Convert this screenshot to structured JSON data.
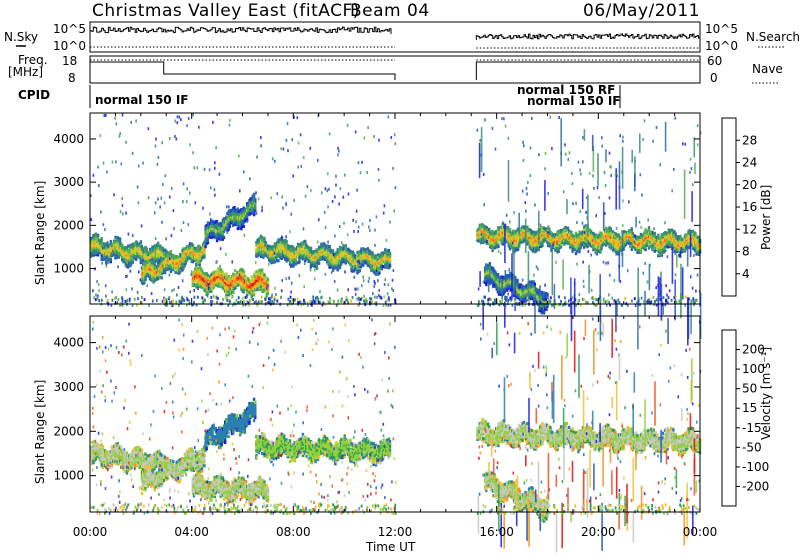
{
  "header": {
    "station": "Christmas Valley East (fitACF)",
    "beam": "Beam 04",
    "date": "06/May/2011"
  },
  "status_labels": {
    "nsky": "N.Sky",
    "nsearch": "N.Search",
    "freq_line1": "Freq.",
    "freq_line2": "[MHz]",
    "nave": "Nave",
    "cpid": "CPID"
  },
  "status_ticks": {
    "nsky_left": [
      "10^5",
      "10^0"
    ],
    "nsky_right": [
      "10^5",
      "10^0"
    ],
    "freq_left": [
      "18",
      "8"
    ],
    "nave_right": [
      "60",
      "0"
    ]
  },
  "cpid_labels": [
    "normal 150 IF",
    "normal 150 RF",
    "normal 150 IF"
  ],
  "colors": {
    "power_scale": [
      "#1a1ae6",
      "#2050c0",
      "#2f6f9f",
      "#3a8f6f",
      "#55b050",
      "#a8d040",
      "#f0c020",
      "#f09020",
      "#f05020",
      "#e01010"
    ],
    "velocity_scale": [
      "#1a1ae6",
      "#2050c0",
      "#2a7fb0",
      "#2f9f4f",
      "#8fd040",
      "#c8c8c0",
      "#f0c030",
      "#f09020",
      "#f05020",
      "#e01010"
    ]
  },
  "chart_data": [
    {
      "type": "heatmap",
      "name": "power",
      "ylabel": "Slant Range [km]",
      "xlabel": "Time UT",
      "x_ticks": [
        "00:00",
        "04:00",
        "08:00",
        "12:00",
        "16:00",
        "20:00",
        "00:00"
      ],
      "y_ticks": [
        "1000",
        "2000",
        "3000",
        "4000"
      ],
      "xlim_hours": [
        0,
        24
      ],
      "ylim_km": [
        180,
        4600
      ],
      "data_gap_hours": [
        12,
        15.2
      ],
      "colorbar": {
        "label": "Power [dB]",
        "ticks": [
          "4",
          "8",
          "12",
          "16",
          "20",
          "24",
          "28"
        ],
        "range": [
          0,
          32
        ]
      },
      "bands": [
        {
          "t0": 0,
          "t1": 3,
          "range_km": [
            1550,
            1300
          ],
          "value_db": 22
        },
        {
          "t0": 2,
          "t1": 4.5,
          "range_km": [
            900,
            1500
          ],
          "value_db": 24
        },
        {
          "t0": 4,
          "t1": 7,
          "range_km": [
            800,
            700
          ],
          "value_db": 28
        },
        {
          "t0": 4.5,
          "t1": 6.5,
          "range_km": [
            1800,
            2500
          ],
          "value_db": 18
        },
        {
          "t0": 6.5,
          "t1": 11.8,
          "range_km": [
            1500,
            1200
          ],
          "value_db": 22
        },
        {
          "t0": 15.2,
          "t1": 24,
          "range_km": [
            1800,
            1650
          ],
          "value_db": 24
        },
        {
          "t0": 15.5,
          "t1": 18,
          "range_km": [
            900,
            300
          ],
          "value_db": 18
        }
      ]
    },
    {
      "type": "heatmap",
      "name": "velocity",
      "ylabel": "Slant Range [km]",
      "xlabel": "Time UT",
      "x_ticks": [
        "00:00",
        "04:00",
        "08:00",
        "12:00",
        "16:00",
        "20:00",
        "00:00"
      ],
      "y_ticks": [
        "1000",
        "2000",
        "3000",
        "4000"
      ],
      "xlim_hours": [
        0,
        24
      ],
      "ylim_km": [
        180,
        4600
      ],
      "data_gap_hours": [
        12,
        15.2
      ],
      "colorbar": {
        "label": "Velocity [m s⁻¹]",
        "ticks": [
          "200",
          "100",
          "50",
          "15",
          "-15",
          "-50",
          "-100",
          "-200"
        ],
        "range": [
          -250,
          250
        ]
      },
      "bands": [
        {
          "t0": 0,
          "t1": 3,
          "range_km": [
            1550,
            1300
          ],
          "value_ms": 0
        },
        {
          "t0": 2,
          "t1": 4.5,
          "range_km": [
            900,
            1500
          ],
          "value_ms": 0
        },
        {
          "t0": 4,
          "t1": 7,
          "range_km": [
            800,
            700
          ],
          "value_ms": 0
        },
        {
          "t0": 4.5,
          "t1": 6.5,
          "range_km": [
            1800,
            2500
          ],
          "value_ms": 120
        },
        {
          "t0": 6.5,
          "t1": 11.8,
          "range_km": [
            1700,
            1600
          ],
          "value_ms": 40
        },
        {
          "t0": 15.2,
          "t1": 24,
          "range_km": [
            2000,
            1800
          ],
          "value_ms": 0
        },
        {
          "t0": 15.5,
          "t1": 18,
          "range_km": [
            900,
            300
          ],
          "value_ms": 0
        }
      ]
    }
  ]
}
